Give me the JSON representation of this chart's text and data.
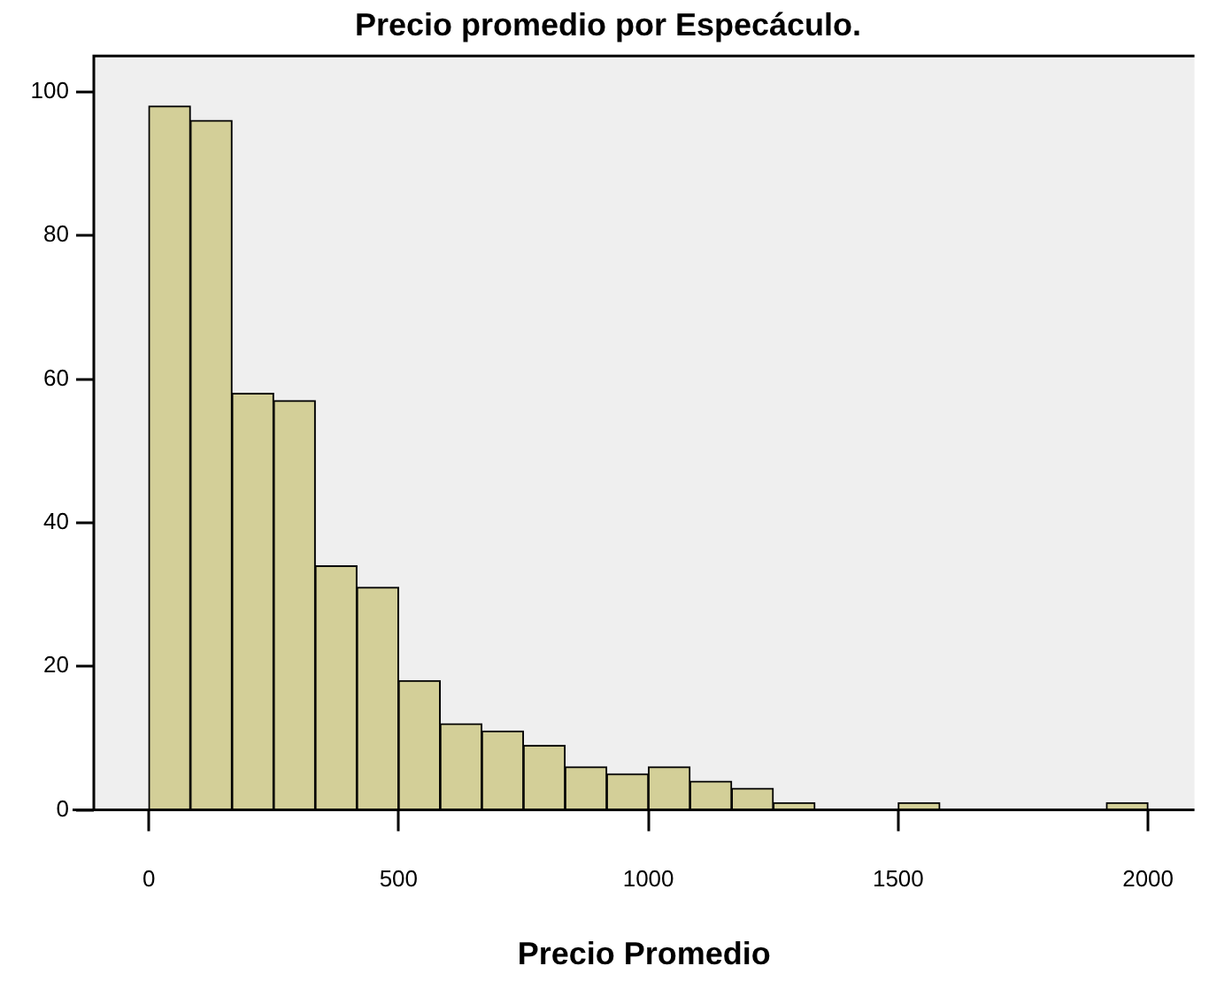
{
  "chart_data": {
    "type": "histogram",
    "title": "Precio promedio por Especáculo.",
    "xlabel": "Precio Promedio",
    "bins": [
      0,
      83.33,
      166.67,
      250,
      333.33,
      416.67,
      500,
      583.33,
      666.67,
      750,
      833.33,
      916.67,
      1000,
      1083.33,
      1166.67,
      1250,
      1333.33,
      1416.67,
      1500,
      1583.33,
      1666.67,
      1750,
      1833.33,
      1916.67,
      2000
    ],
    "values": [
      98,
      96,
      58,
      57,
      34,
      31,
      18,
      12,
      11,
      9,
      6,
      5,
      6,
      4,
      3,
      1,
      0,
      0,
      1,
      0,
      0,
      0,
      0,
      1
    ],
    "color": "#d3cf98",
    "xlim": [
      -110,
      2093
    ],
    "xticks": [
      0,
      500,
      1000,
      1500,
      2000
    ],
    "ylim": [
      0,
      105
    ],
    "yticks": [
      0,
      20,
      40,
      60,
      80,
      100
    ],
    "grid": false,
    "legend": false
  }
}
